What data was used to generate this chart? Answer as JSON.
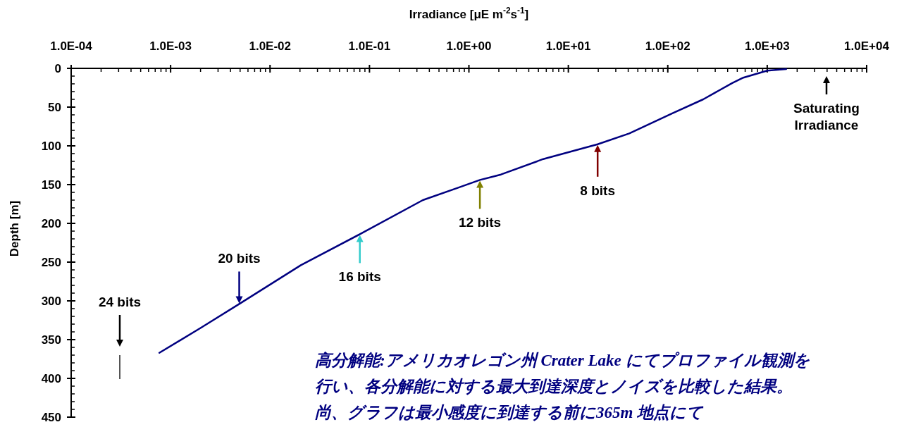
{
  "chart_data": {
    "type": "line",
    "xlabel": "Irradiance [μE m$^{-2}$s$^{-1}$]",
    "ylabel": "Depth [m]",
    "log": "x",
    "xlim": [
      0.0001,
      10000
    ],
    "ylim": [
      450,
      0
    ],
    "xticks": [
      {
        "value": 0.0001,
        "label": "1.0E-04"
      },
      {
        "value": 0.001,
        "label": "1.0E-03"
      },
      {
        "value": 0.01,
        "label": "1.0E-02"
      },
      {
        "value": 0.1,
        "label": "1.0E-01"
      },
      {
        "value": 1,
        "label": "1.0E+00"
      },
      {
        "value": 10,
        "label": "1.0E+01"
      },
      {
        "value": 100,
        "label": "1.0E+02"
      },
      {
        "value": 1000,
        "label": "1.0E+03"
      },
      {
        "value": 10000,
        "label": "1.0E+04"
      }
    ],
    "yticks": [
      0,
      50,
      100,
      150,
      200,
      250,
      300,
      350,
      400,
      450
    ],
    "series": [
      {
        "color": "#000080",
        "x": [
          0.00077,
          0.002,
          0.0049,
          0.0204,
          0.08,
          0.344,
          0.78,
          1.29,
          2.1,
          5.6,
          19.7,
          41,
          111,
          227,
          445,
          575,
          1000,
          1550
        ],
        "values": [
          367,
          335,
          304,
          254,
          214,
          170,
          154,
          144,
          137,
          117,
          98,
          84,
          58,
          40,
          19,
          12,
          3,
          1
        ]
      }
    ],
    "annotations": [
      "24 bits",
      {
        "text": "20 bits",
        "x": 0.0049,
        "y": 304
      },
      {
        "text": "16 bits",
        "x": 0.08,
        "y": 214
      },
      {
        "text": "12 bits",
        "x": 1.29,
        "y": 144
      },
      {
        "text": "8 bits",
        "x": 19.7,
        "y": 98
      },
      "Saturating Irradiance",
      "高分解能:アメリカオレゴン州 Crater Lake にてプロファイル観測を",
      "行い、各分解能に対する最大到達深度とノイズを比較した結果。",
      "尚、グラフは最小感度に到達する前に365m 地点にて"
    ]
  }
}
